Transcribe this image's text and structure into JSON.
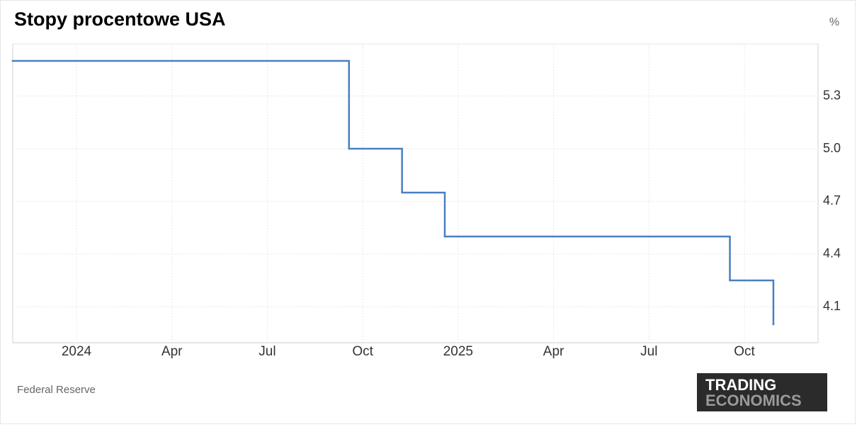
{
  "chart_data": {
    "type": "step-line",
    "title": "Stopy procentowe USA",
    "unit": "%",
    "source": "Federal Reserve",
    "logo": [
      "TRADING",
      "ECONOMICS"
    ],
    "step": "post",
    "x": [
      2023.833,
      2024.714,
      2024.853,
      2024.965,
      2025.712,
      2025.826
    ],
    "series": [
      {
        "color": "#4a7fc1",
        "values": [
          5.5,
          5.0,
          4.75,
          4.5,
          4.25,
          4.0
        ]
      }
    ],
    "xlim": [
      2023.833,
      2025.943
    ],
    "xticks": [
      {
        "value": 2024,
        "label": "2024"
      },
      {
        "value": 2024.25,
        "label": "Apr"
      },
      {
        "value": 2024.5,
        "label": "Jul"
      },
      {
        "value": 2024.75,
        "label": "Oct"
      },
      {
        "value": 2025,
        "label": "2025"
      },
      {
        "value": 2025.25,
        "label": "Apr"
      },
      {
        "value": 2025.5,
        "label": "Jul"
      },
      {
        "value": 2025.75,
        "label": "Oct"
      }
    ],
    "ylim": [
      3.895,
      5.597
    ],
    "yticks": [
      4.1,
      4.4,
      4.7,
      {
        "value": 5,
        "label": "5.0"
      },
      5.3
    ],
    "grid": true
  }
}
